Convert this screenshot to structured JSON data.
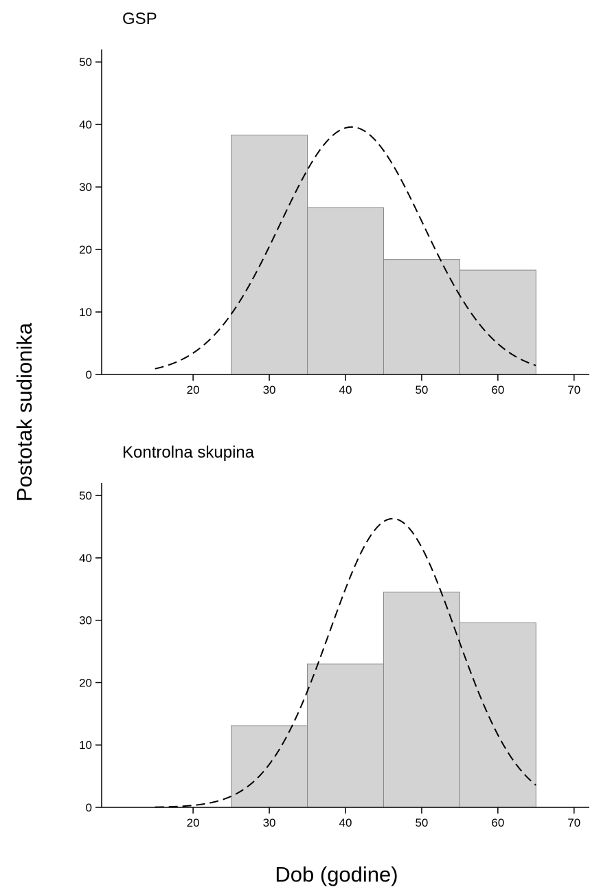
{
  "figure": {
    "ylabel": "Postotak sudionika",
    "xlabel": "Dob (godine)"
  },
  "chart_data": [
    {
      "type": "bar",
      "title": "GSP",
      "xlabel": "",
      "ylabel": "",
      "bins": [
        [
          25,
          35
        ],
        [
          35,
          45
        ],
        [
          45,
          55
        ],
        [
          55,
          65
        ]
      ],
      "values": [
        38.3,
        26.7,
        18.4,
        16.7
      ],
      "normal_curve": {
        "style": "dashed",
        "mean": 40.8,
        "peak": 39.6,
        "sd": 9.4,
        "x_range": [
          15,
          65
        ]
      },
      "xlim": [
        8,
        72
      ],
      "ylim": [
        0,
        52
      ],
      "xticks": [
        20,
        30,
        40,
        50,
        60,
        70
      ],
      "yticks": [
        0,
        10,
        20,
        30,
        40,
        50
      ],
      "bar_color": "#d3d3d3",
      "bar_edge_color": "#888888",
      "grid": false
    },
    {
      "type": "bar",
      "title": "Kontrolna skupina",
      "xlabel": "",
      "ylabel": "",
      "bins": [
        [
          25,
          35
        ],
        [
          35,
          45
        ],
        [
          45,
          55
        ],
        [
          55,
          65
        ]
      ],
      "values": [
        13.1,
        23.0,
        34.5,
        29.6
      ],
      "normal_curve": {
        "style": "dashed",
        "mean": 46.2,
        "peak": 46.3,
        "sd": 8.3,
        "x_range": [
          15,
          65
        ]
      },
      "xlim": [
        8,
        72
      ],
      "ylim": [
        0,
        52
      ],
      "xticks": [
        20,
        30,
        40,
        50,
        60,
        70
      ],
      "yticks": [
        0,
        10,
        20,
        30,
        40,
        50
      ],
      "bar_color": "#d3d3d3",
      "bar_edge_color": "#888888",
      "grid": false
    }
  ]
}
